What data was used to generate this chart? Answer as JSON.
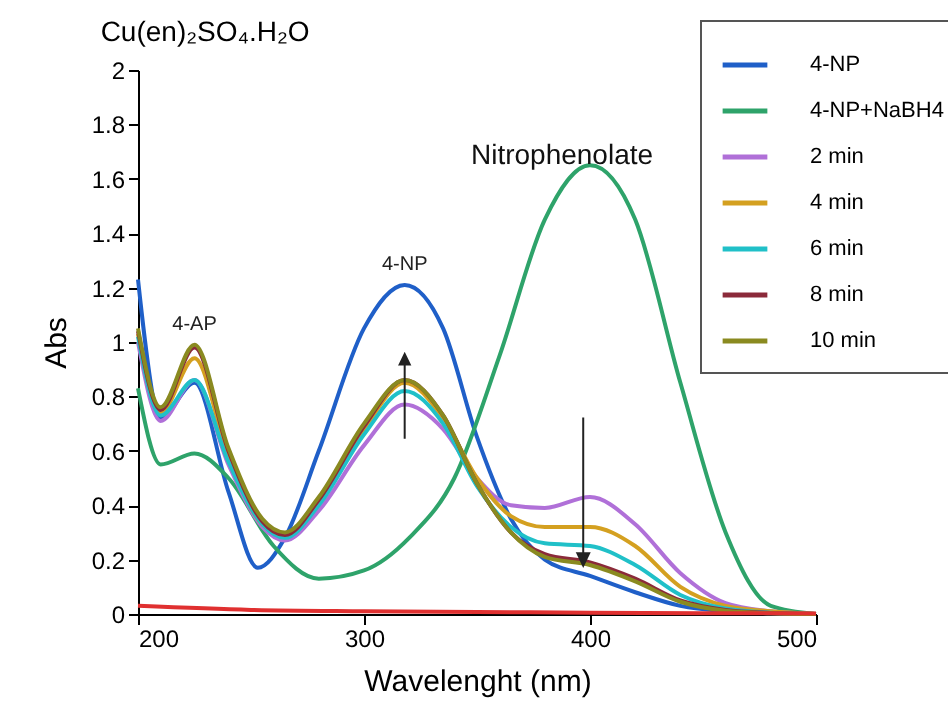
{
  "chart_data": {
    "type": "line",
    "title": "Cu(en)₂SO₄.H₂O",
    "xlabel": "Wavelenght (nm)",
    "ylabel": "Abs",
    "xlim": [
      200,
      500
    ],
    "xticks": [
      200,
      300,
      400,
      500
    ],
    "ylim": [
      0,
      2
    ],
    "yticks": [
      0,
      0.2,
      0.4,
      0.6,
      0.8,
      1,
      1.2,
      1.4,
      1.6,
      1.8,
      2
    ],
    "grid": false,
    "legend": "top right",
    "marker": "none",
    "line_style": "solid",
    "annotations": [
      {
        "text": "4-AP",
        "x": 225,
        "y": 1.03
      },
      {
        "text": "4-NP",
        "x": 318,
        "y": 1.25
      },
      "Nitrophenolate"
    ],
    "series": [
      {
        "name": "4-NP",
        "color": "#1f5fc8",
        "x": [
          200,
          210,
          225,
          240,
          253,
          265,
          280,
          300,
          318,
          335,
          350,
          365,
          380,
          400,
          420,
          440,
          460,
          480,
          500
        ],
        "values": [
          1.23,
          0.72,
          0.85,
          0.45,
          0.17,
          0.28,
          0.6,
          1.05,
          1.21,
          1.05,
          0.65,
          0.35,
          0.2,
          0.14,
          0.08,
          0.03,
          0.01,
          0.003,
          0
        ]
      },
      {
        "name": "4-NP+NaBH4",
        "color": "#2ea36a",
        "x": [
          200,
          210,
          225,
          240,
          260,
          280,
          300,
          320,
          340,
          360,
          380,
          400,
          420,
          440,
          460,
          480,
          500
        ],
        "values": [
          0.83,
          0.55,
          0.59,
          0.5,
          0.25,
          0.13,
          0.16,
          0.28,
          0.5,
          0.95,
          1.45,
          1.65,
          1.45,
          0.85,
          0.3,
          0.03,
          0
        ]
      },
      {
        "name": "2 min",
        "color": "#b070d8",
        "x": [
          200,
          210,
          225,
          240,
          255,
          265,
          280,
          300,
          318,
          335,
          350,
          365,
          380,
          400,
          420,
          440,
          460,
          480,
          500
        ],
        "values": [
          1.0,
          0.71,
          0.86,
          0.55,
          0.32,
          0.27,
          0.38,
          0.62,
          0.77,
          0.68,
          0.5,
          0.4,
          0.39,
          0.43,
          0.33,
          0.15,
          0.04,
          0.01,
          0
        ]
      },
      {
        "name": "4 min",
        "color": "#d4a020",
        "x": [
          200,
          210,
          225,
          240,
          255,
          265,
          280,
          300,
          318,
          335,
          350,
          365,
          380,
          400,
          420,
          440,
          460,
          480,
          500
        ],
        "values": [
          1.03,
          0.74,
          0.94,
          0.58,
          0.33,
          0.29,
          0.42,
          0.68,
          0.85,
          0.72,
          0.5,
          0.36,
          0.32,
          0.32,
          0.25,
          0.1,
          0.03,
          0.01,
          0
        ]
      },
      {
        "name": "6 min",
        "color": "#20c0c8",
        "x": [
          200,
          210,
          225,
          240,
          255,
          265,
          280,
          300,
          318,
          335,
          350,
          365,
          380,
          400,
          420,
          440,
          460,
          480,
          500
        ],
        "values": [
          1.02,
          0.73,
          0.86,
          0.56,
          0.33,
          0.28,
          0.4,
          0.66,
          0.82,
          0.7,
          0.47,
          0.32,
          0.26,
          0.25,
          0.18,
          0.07,
          0.02,
          0.005,
          0
        ]
      },
      {
        "name": "8 min",
        "color": "#8b2a3a",
        "x": [
          200,
          210,
          225,
          240,
          255,
          265,
          280,
          300,
          318,
          335,
          350,
          365,
          380,
          400,
          420,
          440,
          460,
          480,
          500
        ],
        "values": [
          1.04,
          0.75,
          0.98,
          0.6,
          0.34,
          0.29,
          0.42,
          0.69,
          0.86,
          0.73,
          0.48,
          0.3,
          0.22,
          0.19,
          0.13,
          0.05,
          0.015,
          0.004,
          0
        ]
      },
      {
        "color": "#e03030",
        "x": [
          200,
          250,
          300,
          350,
          400,
          450,
          500
        ],
        "values": [
          0.03,
          0.015,
          0.01,
          0.007,
          0.005,
          0.003,
          0.002
        ]
      },
      {
        "name": "10 min",
        "color": "#8a8a20",
        "x": [
          200,
          210,
          225,
          240,
          255,
          265,
          280,
          300,
          318,
          335,
          350,
          365,
          380,
          400,
          420,
          440,
          460,
          480,
          500
        ],
        "values": [
          1.05,
          0.76,
          0.99,
          0.61,
          0.35,
          0.3,
          0.43,
          0.7,
          0.86,
          0.73,
          0.48,
          0.3,
          0.21,
          0.18,
          0.12,
          0.045,
          0.012,
          0.003,
          0
        ]
      }
    ]
  }
}
